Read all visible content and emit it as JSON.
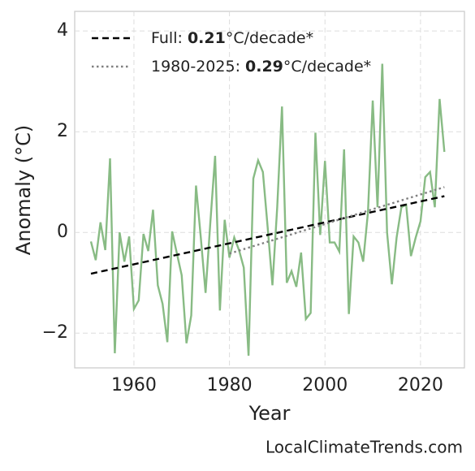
{
  "chart_data": {
    "type": "line",
    "xlabel": "Year",
    "ylabel": "Anomaly (°C)",
    "watermark": "LocalClimateTrends.com",
    "xlim": [
      1947.6,
      2029.2
    ],
    "ylim": [
      -2.69,
      4.39
    ],
    "xticks": [
      1960,
      1980,
      2000,
      2020
    ],
    "yticks": [
      4,
      2,
      0,
      {
        "value": -2,
        "label": "−2"
      }
    ],
    "grid": true,
    "legend": "upper left",
    "x": [
      1951,
      1952,
      1953,
      1954,
      1955,
      1956,
      1957,
      1958,
      1959,
      1960,
      1961,
      1962,
      1963,
      1964,
      1965,
      1966,
      1967,
      1968,
      1969,
      1970,
      1971,
      1972,
      1973,
      1974,
      1975,
      1976,
      1977,
      1978,
      1979,
      1980,
      1981,
      1982,
      1983,
      1984,
      1985,
      1986,
      1987,
      1988,
      1989,
      1990,
      1991,
      1992,
      1993,
      1994,
      1995,
      1996,
      1997,
      1998,
      1999,
      2000,
      2001,
      2002,
      2003,
      2004,
      2005,
      2006,
      2007,
      2008,
      2009,
      2010,
      2011,
      2012,
      2013,
      2014,
      2015,
      2016,
      2017,
      2018,
      2019,
      2020,
      2021,
      2022,
      2023,
      2024,
      2025
    ],
    "series": [
      {
        "color": "#88bb84",
        "values": [
          -0.18,
          -0.55,
          0.2,
          -0.35,
          1.47,
          -2.4,
          0,
          -0.58,
          -0.08,
          -1.52,
          -1.35,
          -0.03,
          -0.37,
          0.45,
          -1.05,
          -1.42,
          -2.18,
          0.02,
          -0.42,
          -0.85,
          -2.2,
          -1.65,
          0.93,
          -0.1,
          -1.2,
          0.2,
          1.52,
          -1.55,
          0.25,
          -0.5,
          -0.1,
          -0.35,
          -0.7,
          -2.45,
          1.07,
          1.43,
          1.2,
          0.1,
          -1.05,
          0.5,
          2.5,
          -1.0,
          -0.77,
          -1.08,
          -0.4,
          -1.72,
          -1.6,
          1.98,
          -0.05,
          1.42,
          -0.2,
          -0.2,
          -0.38,
          1.65,
          -1.62,
          -0.08,
          -0.2,
          -0.58,
          0.4,
          2.62,
          0.5,
          3.35,
          0.0,
          -1.03,
          -0.1,
          0.5,
          0.55,
          -0.47,
          -0.1,
          0.22,
          1.1,
          1.2,
          0.5,
          2.65,
          1.6
        ]
      }
    ],
    "trend_lines": [
      {
        "label": [
          "Full: ",
          "0.21",
          "°C/decade*"
        ],
        "color": "#000000",
        "style": "dashed",
        "x": [
          1951,
          2025
        ],
        "values": [
          -0.82,
          0.72
        ]
      },
      {
        "label": [
          "1980-2025: ",
          "0.29",
          "°C/decade*"
        ],
        "color": "#808080",
        "style": "dotted",
        "x": [
          1980,
          2025
        ],
        "values": [
          -0.42,
          0.9
        ]
      }
    ]
  }
}
